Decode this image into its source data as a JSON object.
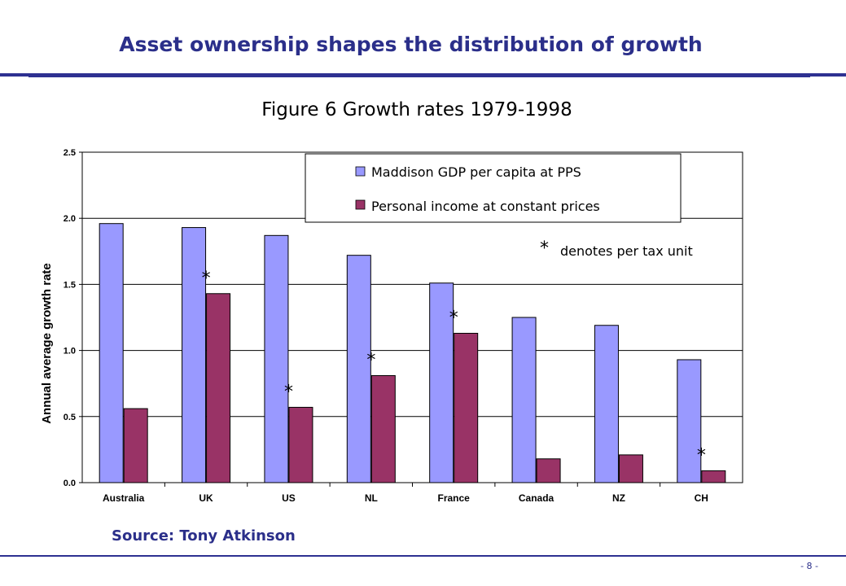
{
  "slide": {
    "title": "Asset ownership shapes the distribution of growth",
    "source": "Source: Tony Atkinson",
    "page_number": "- 8 -"
  },
  "colors": {
    "accent": "#2e3191",
    "series_1": "#9999ff",
    "series_2": "#993366"
  },
  "chart_data": {
    "type": "bar",
    "title": "Figure 6 Growth rates 1979-1998",
    "xlabel": "",
    "ylabel": "Annual average growth rate",
    "ylim": [
      0,
      2.5
    ],
    "yticks": [
      "0.0",
      "0.5",
      "1.0",
      "1.5",
      "2.0",
      "2.5"
    ],
    "grid": true,
    "legend_position": "top-right",
    "categories": [
      "Australia",
      "UK",
      "US",
      "NL",
      "France",
      "Canada",
      "NZ",
      "CH"
    ],
    "series": [
      {
        "name": "Maddison GDP per capita at PPS",
        "values": [
          1.96,
          1.93,
          1.87,
          1.72,
          1.51,
          1.25,
          1.19,
          0.93
        ]
      },
      {
        "name": "Personal income at constant prices",
        "values": [
          0.56,
          1.43,
          0.57,
          0.81,
          1.13,
          0.18,
          0.21,
          0.09
        ]
      }
    ],
    "per_tax_unit": [
      false,
      true,
      true,
      true,
      true,
      false,
      false,
      true
    ],
    "star_symbol": "*",
    "note_symbol": "*",
    "note": "denotes per tax unit"
  }
}
